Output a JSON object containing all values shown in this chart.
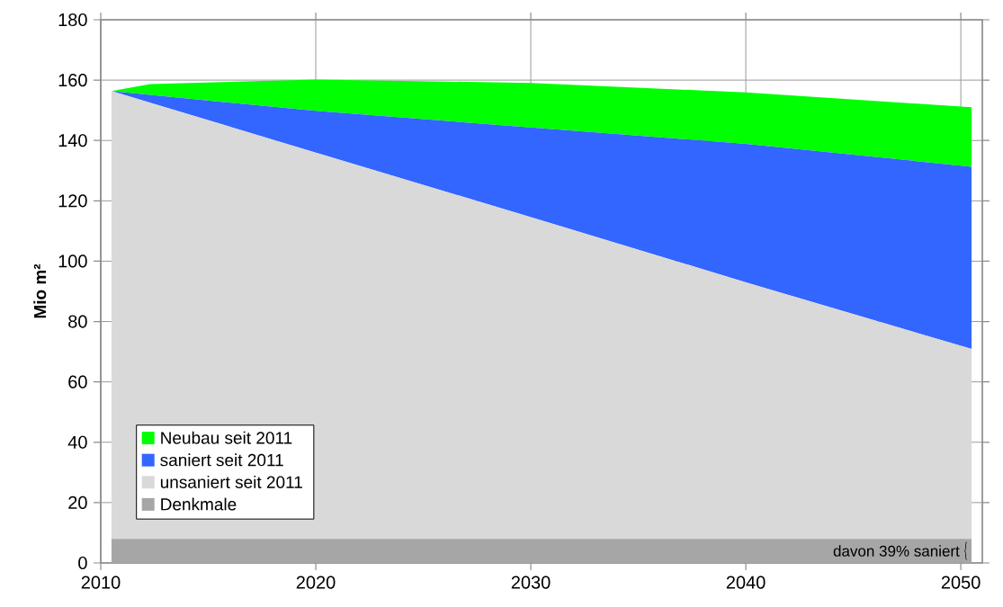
{
  "chart_data": {
    "type": "area",
    "stacked": true,
    "ylabel": "Mio m²",
    "x": [
      2010.5,
      2012.3,
      2020,
      2030,
      2040,
      2050.5
    ],
    "series": [
      {
        "name": "Denkmale",
        "color": "#a6a6a6",
        "values": [
          8,
          8,
          8,
          8,
          8,
          8
        ]
      },
      {
        "name": "unsaniert seit 2011",
        "color": "#d9d9d9",
        "values": [
          148.4,
          144.5,
          128,
          106.6,
          85,
          62.9
        ]
      },
      {
        "name": "saniert seit 2011",
        "color": "#3366ff",
        "values": [
          0,
          2.6,
          13.8,
          29.7,
          45.9,
          60.4
        ]
      },
      {
        "name": "Neubau seit 2011",
        "color": "#00ff00",
        "values": [
          0,
          3.6,
          10.4,
          14.8,
          17,
          19.7
        ]
      }
    ],
    "xlim": [
      2010,
      2051
    ],
    "ylim": [
      0,
      180
    ],
    "xticks": [
      2010,
      2020,
      2030,
      2040,
      2050
    ],
    "yticks": [
      0,
      20,
      40,
      60,
      80,
      100,
      120,
      140,
      160,
      180
    ],
    "grid": true,
    "legend": "bottom left",
    "annotations": [
      "davon 39% saniert"
    ]
  }
}
